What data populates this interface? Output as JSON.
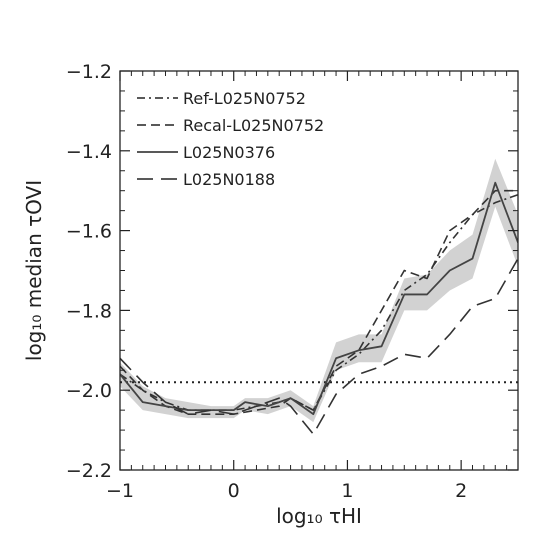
{
  "chart_data": {
    "type": "line",
    "xlabel": "log₁₀ τHI",
    "ylabel": "log₁₀ median τOVI",
    "xlim": [
      -1.0,
      2.5
    ],
    "ylim": [
      -2.2,
      -1.2
    ],
    "xticks": [
      -1,
      0,
      1,
      2
    ],
    "xtick_labels": [
      "−1",
      "0",
      "1",
      "2"
    ],
    "yticks": [
      -2.2,
      -2.0,
      -1.8,
      -1.6,
      -1.4,
      -1.2
    ],
    "ytick_labels": [
      "−2.2",
      "−2.0",
      "−1.8",
      "−1.6",
      "−1.4",
      "−1.2"
    ],
    "grid": false,
    "legend_position": "top-left",
    "reference_line": {
      "y": -1.98,
      "style": "dotted"
    },
    "series": [
      {
        "name": "Ref-L025N0752",
        "style": "dashdot",
        "x": [
          -1.0,
          -0.8,
          -0.6,
          -0.4,
          -0.2,
          0.0,
          0.2,
          0.4,
          0.5,
          0.7,
          0.9,
          1.1,
          1.3,
          1.5,
          1.7,
          1.9,
          2.1,
          2.3,
          2.5
        ],
        "y": [
          -1.96,
          -2.0,
          -2.03,
          -2.05,
          -2.05,
          -2.05,
          -2.04,
          -2.03,
          -2.02,
          -2.05,
          -1.95,
          -1.91,
          -1.85,
          -1.75,
          -1.71,
          -1.63,
          -1.56,
          -1.53,
          -1.51
        ]
      },
      {
        "name": "Recal-L025N0752",
        "style": "dashed",
        "x": [
          -1.0,
          -0.8,
          -0.6,
          -0.4,
          -0.2,
          0.0,
          0.2,
          0.4,
          0.5,
          0.7,
          0.9,
          1.1,
          1.3,
          1.5,
          1.7,
          1.9,
          2.1,
          2.3,
          2.5
        ],
        "y": [
          -1.94,
          -2.0,
          -2.04,
          -2.06,
          -2.06,
          -2.06,
          -2.05,
          -2.04,
          -2.02,
          -2.05,
          -1.94,
          -1.9,
          -1.8,
          -1.7,
          -1.72,
          -1.6,
          -1.56,
          -1.5,
          -1.5
        ]
      },
      {
        "name": "L025N0376",
        "style": "solid",
        "x": [
          -1.0,
          -0.8,
          -0.6,
          -0.4,
          -0.2,
          0.0,
          0.1,
          0.3,
          0.5,
          0.7,
          0.9,
          1.1,
          1.3,
          1.5,
          1.7,
          1.9,
          2.1,
          2.3,
          2.5
        ],
        "y": [
          -1.96,
          -2.03,
          -2.04,
          -2.05,
          -2.05,
          -2.05,
          -2.03,
          -2.04,
          -2.02,
          -2.06,
          -1.92,
          -1.9,
          -1.89,
          -1.76,
          -1.76,
          -1.7,
          -1.67,
          -1.48,
          -1.63
        ],
        "band_upper": [
          -1.93,
          -1.99,
          -2.02,
          -2.03,
          -2.04,
          -2.04,
          -2.02,
          -2.02,
          -2.0,
          -2.04,
          -1.88,
          -1.86,
          -1.86,
          -1.72,
          -1.71,
          -1.65,
          -1.61,
          -1.42,
          -1.56
        ],
        "band_lower": [
          -1.99,
          -2.05,
          -2.06,
          -2.07,
          -2.07,
          -2.07,
          -2.05,
          -2.06,
          -2.04,
          -2.08,
          -1.95,
          -1.93,
          -1.93,
          -1.8,
          -1.8,
          -1.75,
          -1.72,
          -1.54,
          -1.69
        ]
      },
      {
        "name": "L025N0188",
        "style": "longdash",
        "x": [
          -1.0,
          -0.8,
          -0.6,
          -0.4,
          -0.2,
          0.0,
          0.2,
          0.4,
          0.5,
          0.7,
          0.9,
          1.1,
          1.3,
          1.5,
          1.7,
          1.9,
          2.1,
          2.3,
          2.5
        ],
        "y": [
          -1.92,
          -1.98,
          -2.03,
          -2.06,
          -2.05,
          -2.06,
          -2.04,
          -2.02,
          -2.04,
          -2.11,
          -2.01,
          -1.96,
          -1.94,
          -1.91,
          -1.92,
          -1.86,
          -1.79,
          -1.77,
          -1.67
        ]
      }
    ]
  }
}
